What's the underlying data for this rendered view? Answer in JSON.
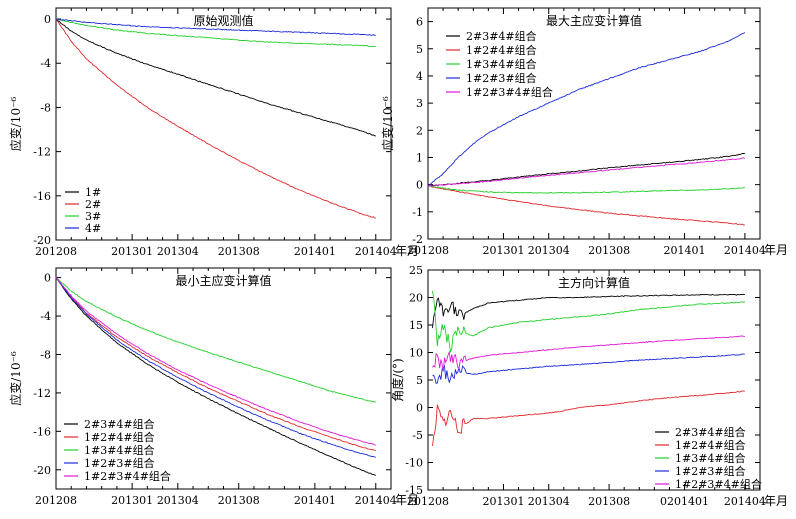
{
  "figure": {
    "x_unit_label": "年月",
    "colors": {
      "black": "#000000",
      "red": "#e0282a",
      "green": "#22d02a",
      "blue": "#1a2bd8",
      "navy": "#1b1b9a",
      "magenta": "#e018d8"
    }
  },
  "chart_data": [
    {
      "id": "p1",
      "type": "line",
      "title": "原始观测值",
      "ylabel": "应变/10⁻⁶",
      "xlabel": "年月",
      "ylim": [
        -20,
        1
      ],
      "yticks": [
        0,
        -4,
        -8,
        -12,
        -16,
        -20
      ],
      "ytick_labels": [
        "0",
        "-4",
        "-8",
        "-12",
        "-16",
        "-20"
      ],
      "xlim": [
        0,
        22
      ],
      "x_tick_values": [
        0,
        5,
        8,
        12,
        17,
        21
      ],
      "x_tick_labels": [
        "201208",
        "201301",
        "201304",
        "201308",
        "201401",
        "201404"
      ],
      "legend": "lower-left",
      "series": [
        {
          "name": "1#",
          "color": "#000000",
          "x": [
            0,
            1,
            2,
            4,
            6,
            8,
            10,
            12,
            14,
            16,
            18,
            20,
            21
          ],
          "values": [
            0,
            -1.1,
            -1.9,
            -3.1,
            -4.1,
            -5.0,
            -5.9,
            -6.8,
            -7.7,
            -8.5,
            -9.3,
            -10.1,
            -10.6
          ]
        },
        {
          "name": "2#",
          "color": "#e0282a",
          "x": [
            0,
            1,
            2,
            4,
            6,
            8,
            10,
            12,
            14,
            16,
            18,
            20,
            21
          ],
          "values": [
            0,
            -2.0,
            -3.6,
            -6.0,
            -8.0,
            -9.7,
            -11.3,
            -12.8,
            -14.2,
            -15.5,
            -16.6,
            -17.6,
            -18.0
          ]
        },
        {
          "name": "3#",
          "color": "#22d02a",
          "x": [
            0,
            2,
            4,
            6,
            8,
            10,
            12,
            14,
            16,
            18,
            20,
            21
          ],
          "values": [
            0,
            -0.6,
            -1.0,
            -1.3,
            -1.5,
            -1.7,
            -1.9,
            -2.1,
            -2.2,
            -2.3,
            -2.4,
            -2.5
          ]
        },
        {
          "name": "4#",
          "color": "#1a2bd8",
          "x": [
            0,
            2,
            4,
            6,
            8,
            10,
            12,
            14,
            16,
            18,
            20,
            21
          ],
          "values": [
            0,
            -0.3,
            -0.5,
            -0.7,
            -0.8,
            -0.9,
            -1.0,
            -1.1,
            -1.2,
            -1.3,
            -1.4,
            -1.45
          ]
        }
      ]
    },
    {
      "id": "p2",
      "type": "line",
      "title": "最大主应变计算值",
      "ylabel": "应变/10⁻⁶",
      "xlabel": "年月",
      "ylim": [
        -2,
        6.5
      ],
      "yticks": [
        6,
        5,
        4,
        3,
        2,
        1,
        0,
        -1,
        -2
      ],
      "ytick_labels": [
        "6",
        "5",
        "4",
        "3",
        "2",
        "1",
        "0",
        "-1",
        "-2"
      ],
      "xlim": [
        0,
        22
      ],
      "x_tick_values": [
        0,
        5,
        8,
        12,
        17,
        21
      ],
      "x_tick_labels": [
        "201208",
        "201301",
        "201304",
        "201308",
        "201401",
        "201404"
      ],
      "legend": "top-left",
      "series": [
        {
          "name": "2#3#4#组合",
          "color": "#000000",
          "x": [
            0,
            2,
            4,
            6,
            8,
            10,
            12,
            14,
            16,
            18,
            20,
            21
          ],
          "values": [
            -0.05,
            0.05,
            0.15,
            0.28,
            0.4,
            0.5,
            0.62,
            0.72,
            0.82,
            0.92,
            1.05,
            1.15
          ]
        },
        {
          "name": "1#2#4#组合",
          "color": "#e0282a",
          "x": [
            0,
            2,
            4,
            6,
            8,
            10,
            12,
            14,
            16,
            18,
            20,
            21
          ],
          "values": [
            -0.05,
            -0.25,
            -0.45,
            -0.62,
            -0.78,
            -0.92,
            -1.05,
            -1.15,
            -1.25,
            -1.33,
            -1.42,
            -1.48
          ]
        },
        {
          "name": "1#3#4#组合",
          "color": "#22d02a",
          "x": [
            0,
            2,
            4,
            6,
            8,
            10,
            12,
            14,
            16,
            18,
            20,
            21
          ],
          "values": [
            -0.05,
            -0.2,
            -0.27,
            -0.3,
            -0.3,
            -0.3,
            -0.28,
            -0.25,
            -0.22,
            -0.2,
            -0.15,
            -0.12
          ]
        },
        {
          "name": "1#2#3#组合",
          "color": "#1a2bd8",
          "x": [
            0,
            1,
            2,
            3,
            4,
            6,
            8,
            10,
            12,
            14,
            16,
            18,
            20,
            21
          ],
          "values": [
            -0.05,
            0.4,
            1.0,
            1.5,
            1.9,
            2.5,
            3.0,
            3.5,
            3.9,
            4.3,
            4.6,
            4.9,
            5.3,
            5.6
          ]
        },
        {
          "name": "1#2#3#4#组合",
          "color": "#e018d8",
          "x": [
            0,
            2,
            4,
            6,
            8,
            10,
            12,
            14,
            16,
            18,
            20,
            21
          ],
          "values": [
            -0.05,
            0.03,
            0.12,
            0.24,
            0.34,
            0.44,
            0.54,
            0.64,
            0.73,
            0.82,
            0.92,
            0.98
          ]
        }
      ]
    },
    {
      "id": "p3",
      "type": "line",
      "title": "最小主应变计算值",
      "ylabel": "应变/10⁻⁶",
      "xlabel": "年月",
      "ylim": [
        -22,
        1
      ],
      "yticks": [
        0,
        -4,
        -8,
        -12,
        -16,
        -20
      ],
      "ytick_labels": [
        "0",
        "-4",
        "-8",
        "-12",
        "-16",
        "-20"
      ],
      "xlim": [
        0,
        22
      ],
      "x_tick_values": [
        0,
        5,
        8,
        12,
        17,
        21
      ],
      "x_tick_labels": [
        "201208",
        "201301",
        "201304",
        "201308",
        "201401",
        "201404"
      ],
      "legend": "bottom-left",
      "series": [
        {
          "name": "2#3#4#组合",
          "color": "#000000",
          "x": [
            0,
            1,
            2,
            4,
            6,
            8,
            10,
            12,
            14,
            16,
            18,
            20,
            21
          ],
          "values": [
            0,
            -2.2,
            -4.0,
            -6.8,
            -9.0,
            -10.9,
            -12.6,
            -14.2,
            -15.7,
            -17.2,
            -18.6,
            -20.0,
            -20.6
          ]
        },
        {
          "name": "1#2#4#组合",
          "color": "#e0282a",
          "x": [
            0,
            1,
            2,
            4,
            6,
            8,
            10,
            12,
            14,
            16,
            18,
            20,
            21
          ],
          "values": [
            0,
            -2.0,
            -3.7,
            -6.2,
            -8.2,
            -9.9,
            -11.5,
            -12.9,
            -14.3,
            -15.5,
            -16.6,
            -17.6,
            -18.0
          ]
        },
        {
          "name": "1#3#4#组合",
          "color": "#22d02a",
          "x": [
            0,
            1,
            2,
            4,
            6,
            8,
            10,
            12,
            14,
            16,
            18,
            20,
            21
          ],
          "values": [
            0,
            -1.4,
            -2.5,
            -4.1,
            -5.5,
            -6.7,
            -7.8,
            -8.8,
            -9.8,
            -10.8,
            -11.8,
            -12.6,
            -13.0
          ]
        },
        {
          "name": "1#2#3#组合",
          "color": "#1a2bd8",
          "x": [
            0,
            1,
            2,
            4,
            6,
            8,
            10,
            12,
            14,
            16,
            18,
            20,
            21
          ],
          "values": [
            0,
            -2.1,
            -3.8,
            -6.5,
            -8.6,
            -10.4,
            -12.0,
            -13.5,
            -14.9,
            -16.2,
            -17.3,
            -18.3,
            -18.7
          ]
        },
        {
          "name": "1#2#3#4#组合",
          "color": "#e018d8",
          "x": [
            0,
            1,
            2,
            4,
            6,
            8,
            10,
            12,
            14,
            16,
            18,
            20,
            21
          ],
          "values": [
            0,
            -1.9,
            -3.5,
            -5.9,
            -7.9,
            -9.6,
            -11.1,
            -12.5,
            -13.8,
            -15.0,
            -16.1,
            -17.0,
            -17.4
          ]
        }
      ]
    },
    {
      "id": "p4",
      "type": "line",
      "title": "主方向计算值",
      "ylabel": "角度/(°)",
      "xlabel": "年月",
      "ylim": [
        -15,
        25
      ],
      "yticks": [
        25,
        20,
        15,
        10,
        5,
        0,
        -5,
        -10,
        -15
      ],
      "ytick_labels": [
        "25",
        "20",
        "15",
        "10",
        "5",
        "0",
        "-5",
        "-10",
        "-15"
      ],
      "xlim": [
        0,
        22
      ],
      "x_tick_values": [
        0,
        5,
        8,
        12,
        17,
        21
      ],
      "x_tick_labels": [
        "201208",
        "201301",
        "201304",
        "201308",
        "0201401",
        "201404"
      ],
      "legend": "bottom-right",
      "series": [
        {
          "name": "2#3#4#组合",
          "color": "#000000",
          "x": [
            0.3,
            0.6,
            1,
            1.5,
            2,
            3,
            4,
            6,
            8,
            10,
            12,
            14,
            16,
            18,
            20,
            21
          ],
          "values": [
            14,
            20,
            17,
            19,
            16.5,
            18,
            19,
            19.5,
            20,
            20,
            20.2,
            20.3,
            20.4,
            20.5,
            20.5,
            20.5
          ]
        },
        {
          "name": "1#2#4#组合",
          "color": "#e0282a",
          "x": [
            0.3,
            0.6,
            1,
            1.5,
            2,
            3,
            4,
            6,
            8,
            9,
            10,
            12,
            14,
            16,
            18,
            20,
            21
          ],
          "values": [
            -8,
            0,
            -3,
            -1,
            -4,
            -2,
            -2,
            -1.5,
            -1,
            -0.6,
            0,
            0.5,
            1.2,
            1.8,
            2.2,
            2.7,
            3.0
          ]
        },
        {
          "name": "1#3#4#组合",
          "color": "#22d02a",
          "x": [
            0.3,
            0.6,
            1,
            1.5,
            2,
            3,
            4,
            6,
            8,
            10,
            12,
            14,
            16,
            18,
            20,
            21
          ],
          "values": [
            22,
            12,
            15,
            11,
            14,
            13,
            14.5,
            15.5,
            16,
            16.5,
            17,
            17.8,
            18.3,
            18.8,
            19.0,
            19.2
          ]
        },
        {
          "name": "1#2#3#组合",
          "color": "#1a2bd8",
          "x": [
            0.3,
            0.6,
            1,
            1.5,
            2,
            3,
            4,
            6,
            8,
            10,
            12,
            14,
            16,
            18,
            20,
            21
          ],
          "values": [
            6,
            4.5,
            7,
            5,
            6.5,
            6,
            6.5,
            7,
            7.5,
            7.8,
            8.2,
            8.6,
            8.9,
            9.2,
            9.5,
            9.7
          ]
        },
        {
          "name": "1#2#3#4#组合",
          "color": "#e018d8",
          "x": [
            0.3,
            0.6,
            1,
            1.5,
            2,
            3,
            4,
            6,
            8,
            10,
            12,
            14,
            16,
            18,
            20,
            21
          ],
          "values": [
            7,
            9,
            7.5,
            9.5,
            8,
            9,
            9.5,
            10,
            10.5,
            11,
            11.4,
            11.8,
            12.2,
            12.5,
            12.8,
            13.0
          ]
        }
      ]
    }
  ]
}
